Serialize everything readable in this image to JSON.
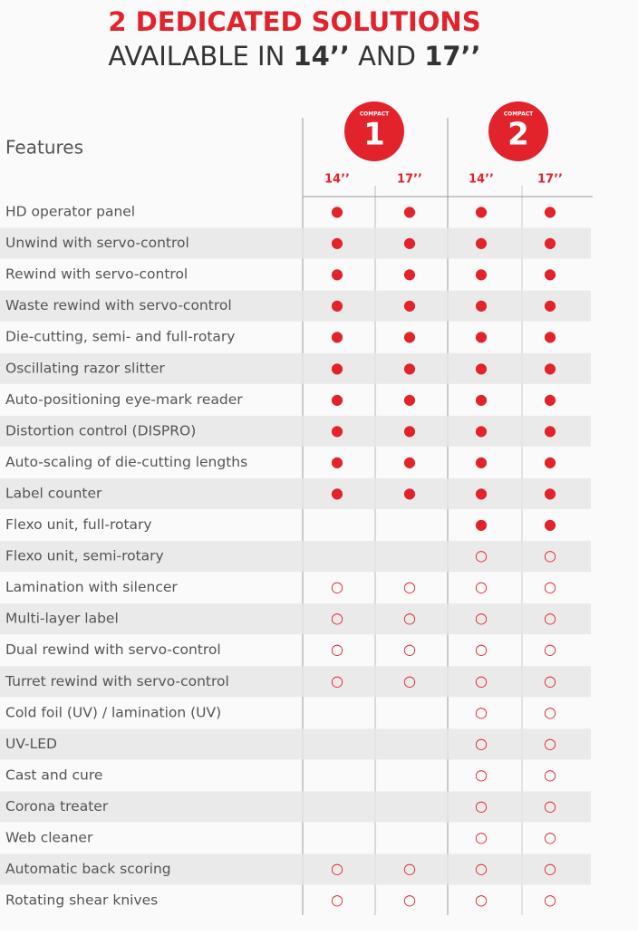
{
  "title": {
    "line1": "2 DEDICATED SOLUTIONS",
    "line2": [
      "AVAILABLE IN ",
      "14’’",
      " AND ",
      "17’’"
    ]
  },
  "table": {
    "feature_header": "Features",
    "groups": [
      {
        "label": "COMPACT",
        "number": "1"
      },
      {
        "label": "COMPACT",
        "number": "2"
      }
    ],
    "columns": [
      "14’’",
      "17’’",
      "14’’",
      "17’’"
    ],
    "rows": [
      [
        "HD operator panel",
        "●",
        "●",
        "●",
        "●"
      ],
      [
        "Unwind with servo-control",
        "●",
        "●",
        "●",
        "●"
      ],
      [
        "Rewind with servo-control",
        "●",
        "●",
        "●",
        "●"
      ],
      [
        "Waste rewind with servo-control",
        "●",
        "●",
        "●",
        "●"
      ],
      [
        "Die-cutting, semi- and full-rotary",
        "●",
        "●",
        "●",
        "●"
      ],
      [
        "Oscillating razor slitter",
        "●",
        "●",
        "●",
        "●"
      ],
      [
        "Auto-positioning eye-mark reader",
        "●",
        "●",
        "●",
        "●"
      ],
      [
        "Distortion control (DISPRO)",
        "●",
        "●",
        "●",
        "●"
      ],
      [
        "Auto-scaling of die-cutting lengths",
        "●",
        "●",
        "●",
        "●"
      ],
      [
        "Label counter",
        "●",
        "●",
        "●",
        "●"
      ],
      [
        "Flexo unit, full-rotary",
        null,
        null,
        "●",
        "●"
      ],
      [
        "Flexo unit, semi-rotary",
        null,
        null,
        "○",
        "○"
      ],
      [
        "Lamination with silencer",
        "○",
        "○",
        "○",
        "○"
      ],
      [
        "Multi-layer label",
        "○",
        "○",
        "○",
        "○"
      ],
      [
        "Dual rewind with servo-control",
        "○",
        "○",
        "○",
        "○"
      ],
      [
        "Turret rewind with servo-control",
        "○",
        "○",
        "○",
        "○"
      ],
      [
        "Cold foil (UV) / lamination (UV)",
        null,
        null,
        "○",
        "○"
      ],
      [
        "UV-LED",
        null,
        null,
        "○",
        "○"
      ],
      [
        "Cast and cure",
        null,
        null,
        "○",
        "○"
      ],
      [
        "Corona treater",
        null,
        null,
        "○",
        "○"
      ],
      [
        "Web cleaner",
        null,
        null,
        "○",
        "○"
      ],
      [
        "Automatic back scoring",
        "○",
        "○",
        "○",
        "○"
      ],
      [
        "Rotating shear knives",
        "○",
        "○",
        "○",
        "○"
      ]
    ]
  }
}
